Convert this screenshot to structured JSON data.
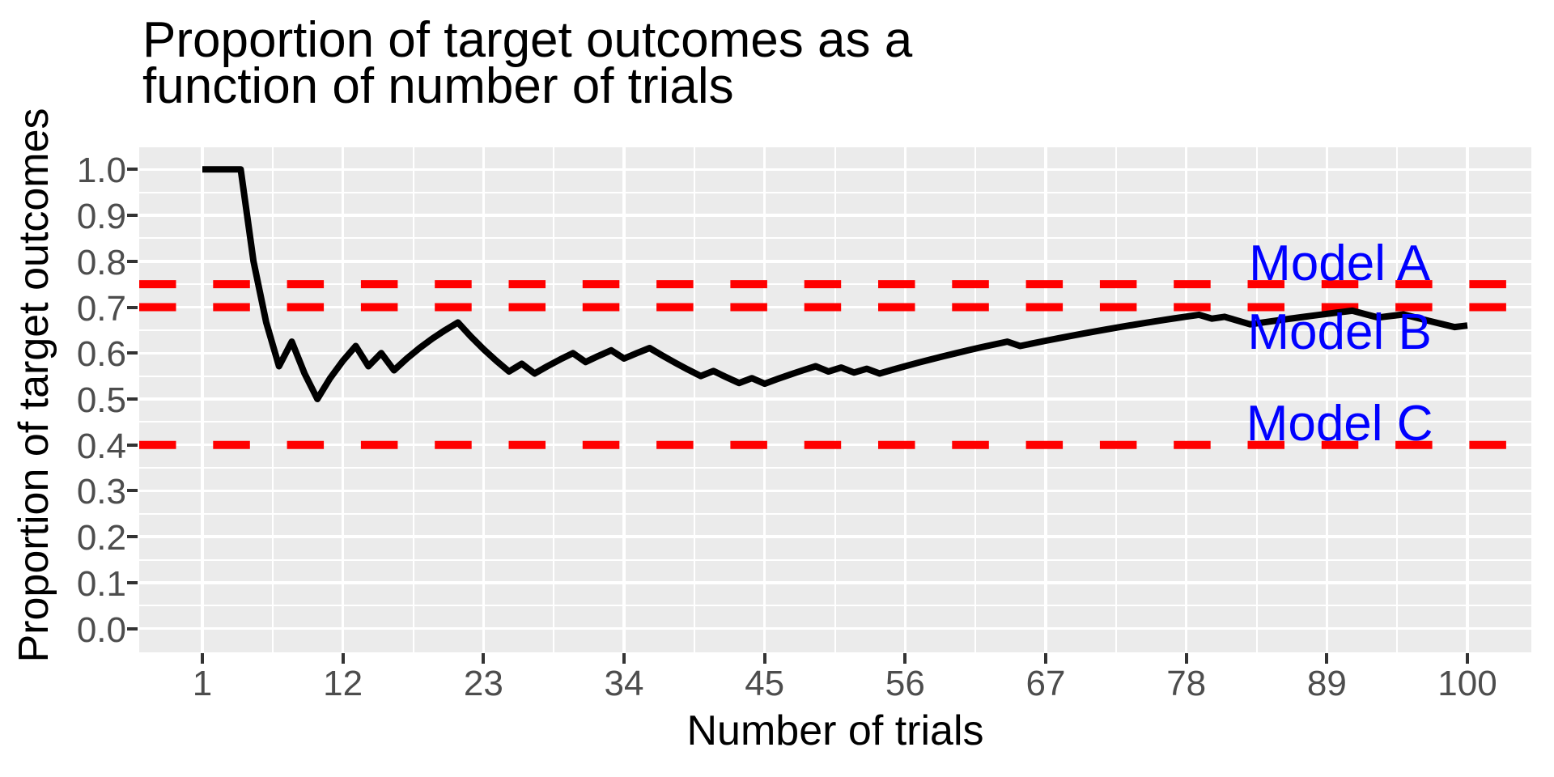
{
  "chart_data": {
    "type": "line",
    "title": "Proportion of target outcomes as a function of number of trials",
    "title_lines": [
      "Proportion of target outcomes as a",
      "function of number of trials"
    ],
    "xlabel": "Number of trials",
    "ylabel": "Proportion of target outcomes",
    "x_ticks": [
      1,
      12,
      23,
      34,
      45,
      56,
      67,
      78,
      89,
      100
    ],
    "y_ticks": [
      "1.0",
      "0.9",
      "0.8",
      "0.7",
      "0.6",
      "0.5",
      "0.4",
      "0.3",
      "0.2",
      "0.1",
      "0.0"
    ],
    "xlim": [
      1,
      100
    ],
    "ylim": [
      0.0,
      1.0
    ],
    "grid": {
      "major": true,
      "minor": true,
      "color": "#FFFFFF",
      "panel_background": "#EBEBEB"
    },
    "legend_position": "none",
    "series": [
      {
        "name": "cumulative-proportion-of-target-outcomes",
        "color": "#000000",
        "x": [
          1,
          2,
          3,
          4,
          5,
          6,
          7,
          8,
          9,
          10,
          11,
          12,
          13,
          14,
          15,
          16,
          17,
          18,
          19,
          20,
          21,
          22,
          23,
          24,
          25,
          26,
          27,
          28,
          29,
          30,
          31,
          32,
          33,
          34,
          35,
          36,
          37,
          38,
          39,
          40,
          41,
          42,
          43,
          44,
          45,
          46,
          47,
          48,
          49,
          50,
          51,
          52,
          53,
          54,
          55,
          56,
          57,
          58,
          59,
          60,
          61,
          62,
          63,
          64,
          65,
          66,
          67,
          68,
          69,
          70,
          71,
          72,
          73,
          74,
          75,
          76,
          77,
          78,
          79,
          80,
          81,
          82,
          83,
          84,
          85,
          86,
          87,
          88,
          89,
          90,
          91,
          92,
          93,
          94,
          95,
          96,
          97,
          98,
          99,
          100
        ],
        "y": [
          1.0,
          1.0,
          1.0,
          1.0,
          0.8,
          0.6667,
          0.5714,
          0.625,
          0.5556,
          0.5,
          0.5455,
          0.5833,
          0.6154,
          0.5714,
          0.6,
          0.5625,
          0.5882,
          0.6111,
          0.6316,
          0.65,
          0.6667,
          0.6364,
          0.6087,
          0.5833,
          0.56,
          0.5769,
          0.5556,
          0.5714,
          0.5862,
          0.6,
          0.5806,
          0.5938,
          0.6061,
          0.5882,
          0.6,
          0.6111,
          0.5946,
          0.5789,
          0.5641,
          0.55,
          0.561,
          0.5476,
          0.5349,
          0.5455,
          0.5333,
          0.5435,
          0.5532,
          0.5625,
          0.5714,
          0.56,
          0.5686,
          0.5577,
          0.566,
          0.5556,
          0.5636,
          0.5714,
          0.5789,
          0.5862,
          0.5932,
          0.6,
          0.6066,
          0.6129,
          0.619,
          0.625,
          0.6154,
          0.6212,
          0.6269,
          0.6324,
          0.6377,
          0.6429,
          0.6479,
          0.6528,
          0.6575,
          0.6622,
          0.6667,
          0.6711,
          0.6753,
          0.6795,
          0.6835,
          0.675,
          0.679,
          0.6707,
          0.6627,
          0.6667,
          0.6706,
          0.6744,
          0.6782,
          0.6818,
          0.6854,
          0.6889,
          0.6923,
          0.6848,
          0.6774,
          0.6809,
          0.6842,
          0.6771,
          0.6701,
          0.6633,
          0.6566,
          0.66
        ]
      }
    ],
    "reference_lines": [
      {
        "id": "model-a",
        "label": "Model A",
        "y": 0.75,
        "style": "dashed",
        "color": "#FF0000",
        "label_color": "#0000FF",
        "label_x": 90,
        "label_y": 0.8
      },
      {
        "id": "model-b",
        "label": "Model B",
        "y": 0.7,
        "style": "dashed",
        "color": "#FF0000",
        "label_color": "#0000FF",
        "label_x": 90,
        "label_y": 0.65
      },
      {
        "id": "model-c",
        "label": "Model C",
        "y": 0.4,
        "style": "dashed",
        "color": "#FF0000",
        "label_color": "#0000FF",
        "label_x": 90,
        "label_y": 0.45
      }
    ]
  },
  "colors": {
    "line": "#000000",
    "reference": "#FF0000",
    "annotation": "#0000FF",
    "panel_background": "#EBEBEB",
    "gridline": "#FFFFFF",
    "tick_label": "#4D4D4D",
    "tick_mark": "#333333",
    "title": "#000000"
  }
}
